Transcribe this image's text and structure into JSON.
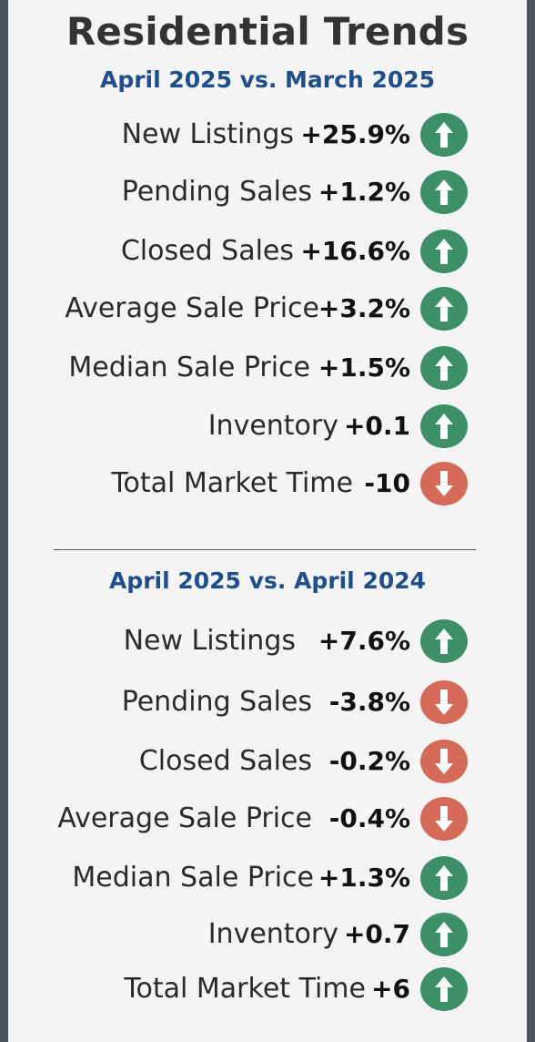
{
  "title": "Residential Trends",
  "colors": {
    "heading": "#1f4e8c",
    "up": "#3d8f6a",
    "down": "#d46a57"
  },
  "sections": [
    {
      "heading": "April 2025 vs. March 2025",
      "rows": [
        {
          "label": "New Listings",
          "value": "+25.9%",
          "direction": "up"
        },
        {
          "label": "Pending Sales",
          "value": "+1.2%",
          "direction": "up"
        },
        {
          "label": "Closed Sales",
          "value": "+16.6%",
          "direction": "up"
        },
        {
          "label": "Average Sale Price",
          "value": "+3.2%",
          "direction": "up"
        },
        {
          "label": "Median Sale Price",
          "value": "+1.5%",
          "direction": "up"
        },
        {
          "label": "Inventory",
          "value": "+0.1",
          "direction": "up"
        },
        {
          "label": "Total Market Time",
          "value": "-10",
          "direction": "down"
        }
      ]
    },
    {
      "heading": "April 2025 vs. April 2024",
      "rows": [
        {
          "label": "New Listings",
          "value": "+7.6%",
          "direction": "up"
        },
        {
          "label": "Pending Sales",
          "value": "-3.8%",
          "direction": "down"
        },
        {
          "label": "Closed Sales",
          "value": "-0.2%",
          "direction": "down"
        },
        {
          "label": "Average Sale Price",
          "value": "-0.4%",
          "direction": "down"
        },
        {
          "label": "Median Sale Price",
          "value": "+1.3%",
          "direction": "up"
        },
        {
          "label": "Inventory",
          "value": "+0.7",
          "direction": "up"
        },
        {
          "label": "Total Market Time",
          "value": "+6",
          "direction": "up"
        }
      ]
    }
  ]
}
